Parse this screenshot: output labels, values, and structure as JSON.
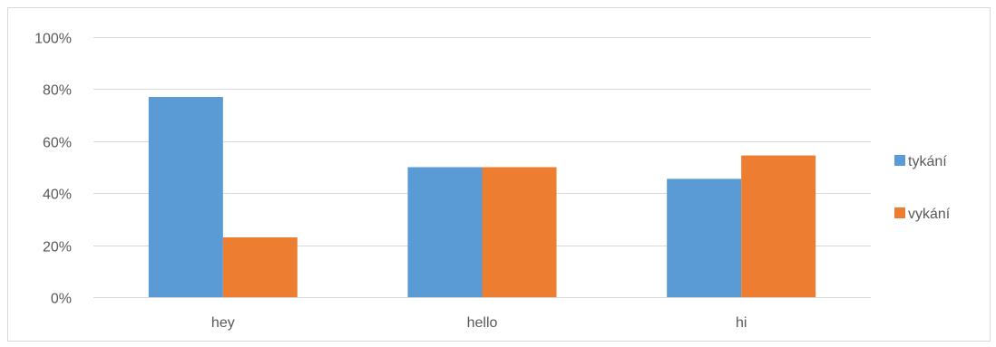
{
  "chart_data": {
    "type": "bar",
    "categories": [
      "hey",
      "hello",
      "hi"
    ],
    "series": [
      {
        "name": "tykání",
        "values": [
          77,
          50,
          45.5
        ],
        "color": "#5b9bd5"
      },
      {
        "name": "vykání",
        "values": [
          23,
          50,
          54.5
        ],
        "color": "#ed7d31"
      }
    ],
    "ylim": [
      0,
      100
    ],
    "ytick_values": [
      0,
      20,
      40,
      60,
      80,
      100
    ],
    "ytick_labels": [
      "0%",
      "20%",
      "40%",
      "60%",
      "80%",
      "100%"
    ],
    "grid": true,
    "gridline_color": "#d9d9d9",
    "legend_position": "right",
    "title": "",
    "xlabel": "",
    "ylabel": ""
  }
}
